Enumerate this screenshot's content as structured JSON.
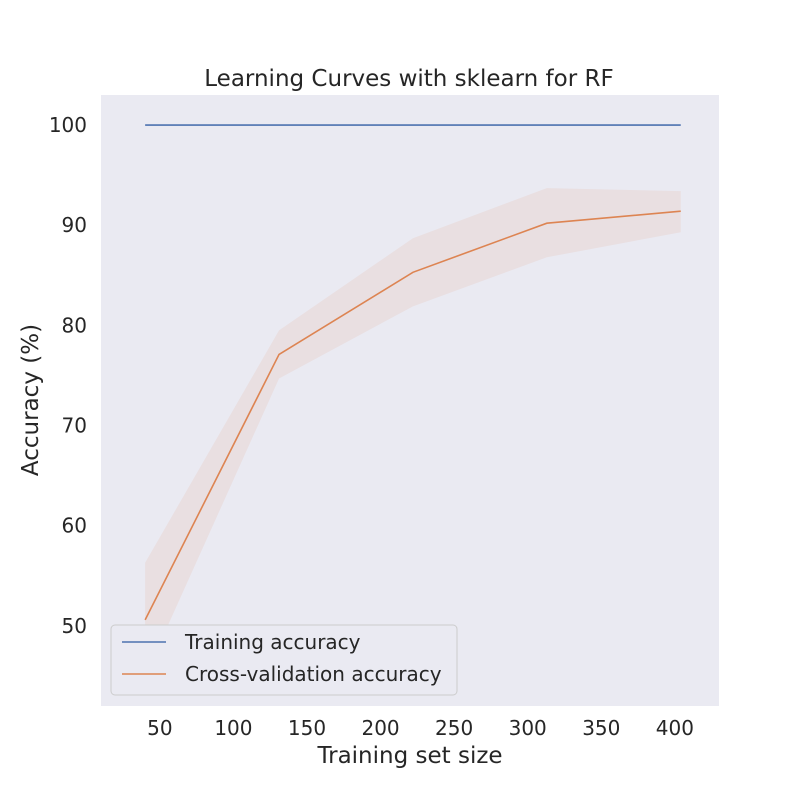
{
  "chart_data": {
    "type": "line",
    "title": "Learning Curves with sklearn for RF",
    "xlabel": "Training set size",
    "ylabel": "Accuracy (%)",
    "xlim": [
      10,
      430
    ],
    "ylim": [
      42,
      103
    ],
    "xticks": [
      50,
      100,
      150,
      200,
      250,
      300,
      350,
      400
    ],
    "yticks": [
      50,
      60,
      70,
      80,
      90,
      100
    ],
    "grid": false,
    "background": "#eaeaf2",
    "legend_position": "lower-left",
    "x": [
      40,
      131,
      222,
      313,
      404
    ],
    "series": [
      {
        "name": "Training accuracy",
        "color": "#4c72b0",
        "values": [
          100,
          100,
          100,
          100,
          100
        ]
      },
      {
        "name": "Cross-validation accuracy",
        "color": "#dd8452",
        "values": [
          50.6,
          77.1,
          85.3,
          90.2,
          91.4
        ],
        "lower": [
          45.0,
          74.7,
          81.9,
          86.8,
          89.3
        ],
        "upper": [
          56.3,
          79.5,
          88.7,
          93.7,
          93.4
        ]
      }
    ]
  }
}
